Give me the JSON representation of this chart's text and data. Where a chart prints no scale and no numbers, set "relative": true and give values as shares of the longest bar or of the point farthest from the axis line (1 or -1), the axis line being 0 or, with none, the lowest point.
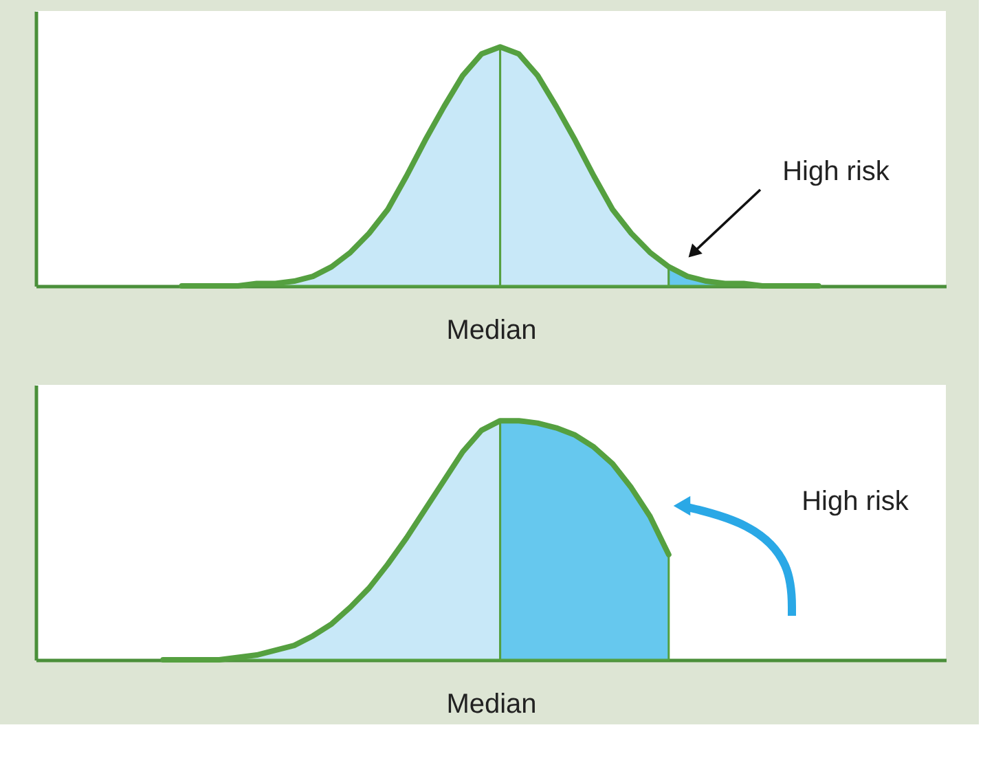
{
  "chart_data": [
    {
      "type": "area",
      "relative": true,
      "xlabel": "Median",
      "tick_labels": false,
      "grid": false,
      "categories": [
        null,
        null,
        null,
        null,
        null,
        null,
        null,
        null,
        null,
        null,
        null,
        null,
        null,
        null,
        null,
        null,
        null,
        null,
        null,
        null,
        null,
        null,
        null,
        null,
        null,
        null,
        null,
        null,
        null,
        null,
        null,
        null,
        null,
        null,
        null,
        null,
        null,
        null,
        null,
        null,
        null,
        null,
        null,
        null,
        null,
        null,
        null,
        null
      ],
      "series": [
        {
          "color": "#c8e8f8",
          "values": [
            null,
            null,
            null,
            null,
            null,
            null,
            null,
            0,
            0,
            0,
            0,
            0.01,
            0.01,
            0.02,
            0.04,
            0.08,
            0.14,
            0.22,
            0.32,
            0.46,
            0.61,
            0.75,
            0.88,
            0.97,
            1,
            null,
            null,
            null,
            null,
            null,
            null,
            null,
            null,
            null,
            null,
            null,
            null,
            null,
            null,
            null,
            null,
            null,
            null,
            null,
            null,
            null,
            null,
            null
          ]
        },
        {
          "color": "#c8e8f8",
          "values": [
            null,
            null,
            null,
            null,
            null,
            null,
            null,
            null,
            null,
            null,
            null,
            null,
            null,
            null,
            null,
            null,
            null,
            null,
            null,
            null,
            null,
            null,
            null,
            null,
            1,
            0.97,
            0.88,
            0.75,
            0.61,
            0.46,
            0.32,
            0.22,
            0.14,
            0.08,
            null,
            null,
            null,
            null,
            null,
            null,
            null,
            null,
            null,
            null,
            null,
            null,
            null,
            null
          ]
        },
        {
          "color": "#66c8ee",
          "values": [
            null,
            null,
            null,
            null,
            null,
            null,
            null,
            null,
            null,
            null,
            null,
            null,
            null,
            null,
            null,
            null,
            null,
            null,
            null,
            null,
            null,
            null,
            null,
            null,
            null,
            null,
            null,
            null,
            null,
            null,
            null,
            null,
            null,
            0.08,
            0.04,
            0.02,
            0.01,
            0.01,
            0,
            0,
            0,
            0,
            null,
            null,
            null,
            null,
            null,
            null
          ]
        },
        {
          "type": "line",
          "color": "#55a040",
          "values": [
            null,
            null,
            null,
            null,
            null,
            null,
            null,
            0,
            0,
            0,
            0,
            0.01,
            0.01,
            0.02,
            0.04,
            0.08,
            0.14,
            0.22,
            0.32,
            0.46,
            0.61,
            0.75,
            0.88,
            0.97,
            1,
            0.97,
            0.88,
            0.75,
            0.61,
            0.46,
            0.32,
            0.22,
            0.14,
            0.08,
            0.04,
            0.02,
            0.01,
            0.01,
            0,
            0,
            0,
            0,
            null,
            null,
            null,
            null,
            null,
            null
          ]
        }
      ],
      "annotations": [
        "High risk"
      ]
    },
    {
      "type": "area",
      "relative": true,
      "xlabel": "Median",
      "tick_labels": false,
      "grid": false,
      "categories": [
        null,
        null,
        null,
        null,
        null,
        null,
        null,
        null,
        null,
        null,
        null,
        null,
        null,
        null,
        null,
        null,
        null,
        null,
        null,
        null,
        null,
        null,
        null,
        null,
        null,
        null,
        null,
        null,
        null,
        null,
        null,
        null,
        null,
        null,
        null,
        null,
        null,
        null,
        null,
        null,
        null,
        null,
        null,
        null,
        null,
        null,
        null,
        null
      ],
      "series": [
        {
          "color": "#c8e8f8",
          "values": [
            null,
            null,
            null,
            null,
            null,
            null,
            0,
            0,
            0,
            0,
            0.01,
            0.02,
            0.04,
            0.06,
            0.1,
            0.15,
            0.22,
            0.3,
            0.4,
            0.51,
            0.63,
            0.75,
            0.87,
            0.96,
            1,
            null,
            null,
            null,
            null,
            null,
            null,
            null,
            null,
            null,
            null,
            null,
            null,
            null,
            null,
            null,
            null,
            null,
            null,
            null,
            null,
            null,
            null,
            null
          ]
        },
        {
          "color": "#66c8ee",
          "values": [
            null,
            null,
            null,
            null,
            null,
            null,
            null,
            null,
            null,
            null,
            null,
            null,
            null,
            null,
            null,
            null,
            null,
            null,
            null,
            null,
            null,
            null,
            null,
            null,
            1,
            1,
            0.99,
            0.97,
            0.94,
            0.89,
            0.82,
            0.72,
            0.6,
            0.44,
            null,
            null,
            null,
            null,
            null,
            null,
            null,
            null,
            null,
            null,
            null,
            null,
            null,
            null
          ]
        },
        {
          "type": "line",
          "color": "#55a040",
          "values": [
            null,
            null,
            null,
            null,
            null,
            null,
            0,
            0,
            0,
            0,
            0.01,
            0.02,
            0.04,
            0.06,
            0.1,
            0.15,
            0.22,
            0.3,
            0.4,
            0.51,
            0.63,
            0.75,
            0.87,
            0.96,
            1,
            1,
            0.99,
            0.97,
            0.94,
            0.89,
            0.82,
            0.72,
            0.6,
            0.44,
            null,
            null,
            null,
            null,
            null,
            null,
            null,
            null,
            null,
            null,
            null,
            null,
            null,
            null
          ]
        }
      ],
      "annotations": [
        "High risk"
      ]
    }
  ]
}
